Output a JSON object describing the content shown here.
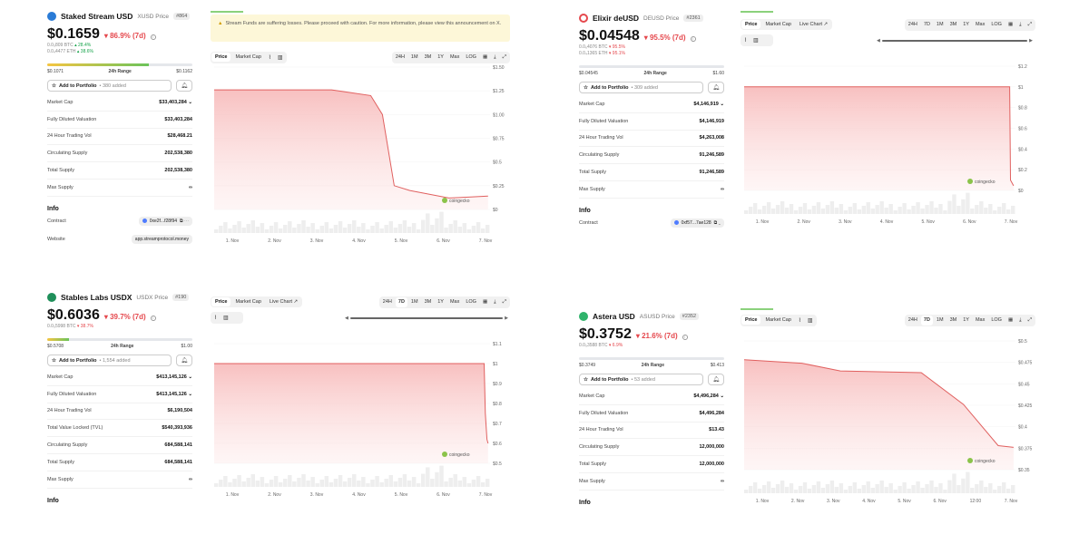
{
  "panels": [
    {
      "id": "tl",
      "name": "Staked Stream USD",
      "symbol": "XUSD Price",
      "rank": "#864",
      "icon_color": "#2a7bd6",
      "price": "$0.1659",
      "change": "▾ 86.9% (7d)",
      "sub1": "0.0₅809 BTC",
      "sub1_delta": "▴ 28.4%",
      "sub2": "0.0₄4477 ETH",
      "sub2_delta": "▴ 38.6%",
      "range_low": "$0.1071",
      "range_label": "24h Range",
      "range_high": "$0.1162",
      "portfolio_label": "Add to Portfolio",
      "portfolio_added": "• 380 added",
      "stats": [
        {
          "k": "Market Cap",
          "v": "$33,403,284",
          "chev": true
        },
        {
          "k": "Fully Diluted Valuation",
          "v": "$33,403,284"
        },
        {
          "k": "24 Hour Trading Vol",
          "v": "$28,468.21"
        },
        {
          "k": "Circulating Supply",
          "v": "202,538,380"
        },
        {
          "k": "Total Supply",
          "v": "202,538,380"
        },
        {
          "k": "Max Supply",
          "v": "∞"
        }
      ],
      "info_title": "Info",
      "contract_label": "Contract",
      "contract_value": "0xe2f...f28f94",
      "website_label": "Website",
      "website_value": "app.streamprotocol.money",
      "warning": "Stream Funds are suffering losses. Please proceed with caution. For more information, please view this announcement on X.",
      "tabs": [
        "Price",
        "Market Cap"
      ],
      "ranges": [
        "24H",
        "1M",
        "3M",
        "1Y",
        "Max",
        "LOG"
      ],
      "y_ticks": [
        "$1.50",
        "$1.25",
        "$1.00",
        "$0.75",
        "$0.5",
        "$0.25",
        "$0"
      ],
      "x_ticks": [
        "1. Nov",
        "2. Nov",
        "3. Nov",
        "4. Nov",
        "5. Nov",
        "6. Nov",
        "7. Nov"
      ],
      "watermark": "coingecko",
      "chart_data": {
        "type": "area",
        "x": [
          "31. Oct",
          "1. Nov",
          "2. Nov",
          "3. Nov",
          "4. Nov",
          "4.3 Nov",
          "4.6 Nov",
          "5. Nov",
          "6. Nov",
          "6.5 Nov",
          "7. Nov"
        ],
        "values": [
          1.26,
          1.26,
          1.26,
          1.26,
          1.2,
          1.0,
          0.25,
          0.2,
          0.12,
          0.13,
          0.14
        ],
        "ylim": [
          0,
          1.5
        ]
      }
    },
    {
      "id": "tr",
      "name": "Elixir deUSD",
      "symbol": "DEUSD Price",
      "rank": "#2361",
      "icon_color": "#e5484d",
      "price": "$0.04548",
      "change": "▾ 95.5% (7d)",
      "sub1": "0.0₆4076 BTC",
      "sub1_delta": "▾ 95.5%",
      "sub2": "0.0₄1365 ETH",
      "sub2_delta": "▾ 95.1%",
      "range_low": "$0.04545",
      "range_label": "24h Range",
      "range_high": "$1.60",
      "portfolio_label": "Add to Portfolio",
      "portfolio_added": "• 309 added",
      "stats": [
        {
          "k": "Market Cap",
          "v": "$4,146,919",
          "chev": true
        },
        {
          "k": "Fully Diluted Valuation",
          "v": "$4,146,919"
        },
        {
          "k": "24 Hour Trading Vol",
          "v": "$4,263,008"
        },
        {
          "k": "Circulating Supply",
          "v": "91,246,589"
        },
        {
          "k": "Total Supply",
          "v": "91,246,589"
        },
        {
          "k": "Max Supply",
          "v": "∞"
        }
      ],
      "info_title": "Info",
      "contract_label": "Contract",
      "contract_value": "0xf57...7ae128",
      "tabs": [
        "Price",
        "Market Cap",
        "Live Chart ↗"
      ],
      "ranges": [
        "24H",
        "7D",
        "1M",
        "3M",
        "1Y",
        "Max",
        "LOG"
      ],
      "y_ticks": [
        "$1.2",
        "$1",
        "$0.8",
        "$0.6",
        "$0.4",
        "$0.2",
        "$0"
      ],
      "x_ticks": [
        "1. Nov",
        "2. Nov",
        "3. Nov",
        "4. Nov",
        "5. Nov",
        "6. Nov",
        "7. Nov"
      ],
      "watermark": "coingecko",
      "chart_data": {
        "type": "area",
        "x": [
          "31. Oct",
          "6.9 Nov",
          "6.92 Nov",
          "7. Nov"
        ],
        "values": [
          1.0,
          1.0,
          0.1,
          0.045
        ],
        "ylim": [
          0,
          1.2
        ]
      }
    },
    {
      "id": "bl",
      "name": "Stables Labs USDX",
      "symbol": "USDX Price",
      "rank": "#190",
      "icon_color": "#1f8f5a",
      "price": "$0.6036",
      "change": "▾ 39.7% (7d)",
      "sub1": "0.0₅5998 BTC",
      "sub1_delta": "▾ 38.7%",
      "range_low": "$0.5708",
      "range_label": "24h Range",
      "range_high": "$1.00",
      "portfolio_label": "Add to Portfolio",
      "portfolio_added": "• 1,554 added",
      "stats": [
        {
          "k": "Market Cap",
          "v": "$413,145,126",
          "chev": true
        },
        {
          "k": "Fully Diluted Valuation",
          "v": "$413,145,126",
          "chev": true
        },
        {
          "k": "24 Hour Trading Vol",
          "v": "$6,190,504"
        },
        {
          "k": "Total Value Locked (TVL)",
          "v": "$540,393,936"
        },
        {
          "k": "Circulating Supply",
          "v": "684,588,141"
        },
        {
          "k": "Total Supply",
          "v": "684,588,141"
        },
        {
          "k": "Max Supply",
          "v": "∞"
        }
      ],
      "info_title": "Info",
      "tabs": [
        "Price",
        "Market Cap",
        "Live Chart ↗"
      ],
      "ranges": [
        "24H",
        "7D",
        "1M",
        "3M",
        "1Y",
        "Max",
        "LOG"
      ],
      "y_ticks": [
        "$1.1",
        "$1",
        "$0.9",
        "$0.8",
        "$0.7",
        "$0.6",
        "$0.5"
      ],
      "x_ticks": [
        "1. Nov",
        "2. Nov",
        "3. Nov",
        "4. Nov",
        "5. Nov",
        "6. Nov",
        "7. Nov"
      ],
      "watermark": "coingecko",
      "chart_data": {
        "type": "area",
        "x": [
          "31. Oct",
          "6.9 Nov",
          "6.93 Nov",
          "6.97 Nov",
          "7. Nov"
        ],
        "values": [
          1.0,
          1.0,
          0.75,
          0.62,
          0.6
        ],
        "ylim": [
          0.5,
          1.1
        ]
      }
    },
    {
      "id": "br",
      "name": "Astera USD",
      "symbol": "ASUSD Price",
      "rank": "#2352",
      "icon_color": "#2fb36b",
      "price": "$0.3752",
      "change": "▾ 21.6% (7d)",
      "sub1": "0.0₅3588 BTC",
      "sub1_delta": "▾ 6.9%",
      "range_low": "$0.3749",
      "range_label": "24h Range",
      "range_high": "$0.413",
      "portfolio_label": "Add to Portfolio",
      "portfolio_added": "• 53 added",
      "stats": [
        {
          "k": "Market Cap",
          "v": "$4,496,284",
          "chev": true
        },
        {
          "k": "Fully Diluted Valuation",
          "v": "$4,496,284"
        },
        {
          "k": "24 Hour Trading Vol",
          "v": "$13.43"
        },
        {
          "k": "Circulating Supply",
          "v": "12,000,000"
        },
        {
          "k": "Total Supply",
          "v": "12,000,000"
        },
        {
          "k": "Max Supply",
          "v": "∞"
        }
      ],
      "info_title": "Info",
      "tabs": [
        "Price",
        "Market Cap"
      ],
      "ranges": [
        "24H",
        "7D",
        "1M",
        "3M",
        "1Y",
        "Max",
        "LOG"
      ],
      "y_ticks": [
        "$0.5",
        "$0.475",
        "$0.45",
        "$0.425",
        "$0.4",
        "$0.375",
        "$0.35"
      ],
      "x_ticks": [
        "1. Nov",
        "2. Nov",
        "3. Nov",
        "4. Nov",
        "5. Nov",
        "6. Nov",
        "12:00",
        "7. Nov"
      ],
      "watermark": "coingecko",
      "chart_data": {
        "type": "area",
        "x": [
          "31. Oct",
          "1.5 Nov",
          "2.5 Nov",
          "4.6 Nov",
          "5.7 Nov",
          "6.6 Nov",
          "7. Nov"
        ],
        "values": [
          0.478,
          0.474,
          0.465,
          0.463,
          0.426,
          0.378,
          0.376
        ],
        "ylim": [
          0.35,
          0.5
        ]
      }
    }
  ]
}
